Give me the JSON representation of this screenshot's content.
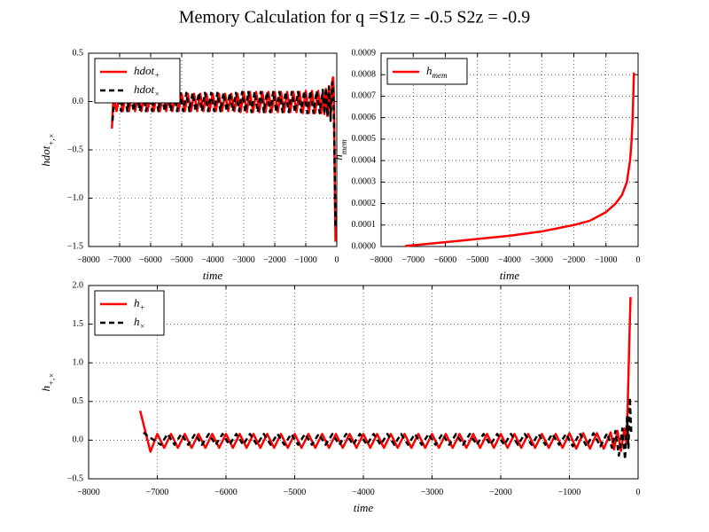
{
  "title": "Memory Calculation for q =S1z = -0.5 S2z = -0.9",
  "chart_data": [
    {
      "type": "line",
      "xlabel": "time",
      "ylabel": "hdot",
      "ylabel_sub": "+,×",
      "xlim": [
        -8000,
        0
      ],
      "ylim": [
        -1.5,
        0.5
      ],
      "xticks": [
        {
          "value": -8000,
          "label": "−8000"
        },
        {
          "value": -7000,
          "label": "−7000"
        },
        {
          "value": -6000,
          "label": "−6000"
        },
        {
          "value": -5000,
          "label": "−5000"
        },
        {
          "value": -4000,
          "label": "−4000"
        },
        {
          "value": -3000,
          "label": "−3000"
        },
        {
          "value": -2000,
          "label": "−2000"
        },
        {
          "value": -1000,
          "label": "−1000"
        },
        0
      ],
      "yticks": [
        {
          "value": -1.5,
          "label": "−1.5"
        },
        {
          "value": -1.0,
          "label": "−1.0"
        },
        {
          "value": -0.5,
          "label": "−0.5"
        },
        {
          "value": 0,
          "label": "0.0"
        },
        0.5
      ],
      "grid": true,
      "legend": "upper left",
      "series": [
        {
          "name": "hdot",
          "name_sub": "+",
          "color": "#ff0000",
          "linestyle": "solid",
          "x": [
            -7250,
            -7200,
            -7100,
            -7000,
            -6900,
            -6800,
            -6700,
            -6600,
            -6500,
            -6400,
            -6300,
            -6200,
            -6100,
            -6000,
            -5900,
            -5800,
            -5700,
            -5600,
            -5500,
            -5400,
            -5300,
            -5200,
            -5100,
            -5000,
            -4900,
            -4800,
            -4700,
            -4600,
            -4500,
            -4400,
            -4300,
            -4200,
            -4100,
            -4000,
            -3900,
            -3800,
            -3700,
            -3600,
            -3500,
            -3400,
            -3300,
            -3200,
            -3100,
            -3000,
            -2900,
            -2800,
            -2700,
            -2600,
            -2500,
            -2400,
            -2300,
            -2200,
            -2100,
            -2000,
            -1900,
            -1800,
            -1700,
            -1600,
            -1500,
            -1400,
            -1300,
            -1200,
            -1100,
            -1000,
            -900,
            -800,
            -700,
            -600,
            -500,
            -450,
            -400,
            -350,
            -300,
            -250,
            -200,
            -150,
            -120,
            -100,
            -80,
            -60,
            -40
          ],
          "values": [
            -0.28,
            0.05,
            -0.1,
            0.08,
            -0.1,
            0.08,
            -0.1,
            0.08,
            -0.1,
            0.08,
            -0.1,
            0.08,
            -0.1,
            0.08,
            -0.1,
            0.08,
            -0.1,
            0.08,
            -0.1,
            0.08,
            -0.1,
            0.08,
            -0.1,
            0.08,
            -0.1,
            0.08,
            -0.1,
            0.08,
            -0.1,
            0.08,
            -0.1,
            0.08,
            -0.1,
            0.08,
            -0.1,
            0.08,
            -0.1,
            0.08,
            -0.1,
            0.08,
            -0.1,
            0.08,
            -0.11,
            0.1,
            -0.11,
            0.1,
            -0.11,
            0.1,
            -0.11,
            0.1,
            -0.11,
            0.1,
            -0.11,
            0.1,
            -0.11,
            0.1,
            -0.11,
            0.1,
            -0.11,
            0.1,
            -0.11,
            0.1,
            -0.12,
            0.11,
            -0.12,
            0.11,
            -0.12,
            0.11,
            -0.12,
            0.12,
            -0.13,
            0.13,
            -0.15,
            0.16,
            -0.18,
            0.2,
            0.25,
            0.15,
            -0.3,
            -1.0,
            -1.45
          ]
        },
        {
          "name": "hdot",
          "name_sub": "×",
          "color": "#000000",
          "linestyle": "dashed",
          "x": [
            -7230,
            -7180,
            -7050,
            -6950,
            -6850,
            -6750,
            -6650,
            -6550,
            -6450,
            -6350,
            -6250,
            -6150,
            -6050,
            -5950,
            -5850,
            -5750,
            -5650,
            -5550,
            -5450,
            -5350,
            -5250,
            -5150,
            -5050,
            -4950,
            -4850,
            -4750,
            -4650,
            -4550,
            -4450,
            -4350,
            -4250,
            -4150,
            -4050,
            -3950,
            -3850,
            -3750,
            -3650,
            -3550,
            -3450,
            -3350,
            -3250,
            -3150,
            -3050,
            -2950,
            -2850,
            -2750,
            -2650,
            -2550,
            -2450,
            -2350,
            -2250,
            -2150,
            -2050,
            -1950,
            -1850,
            -1750,
            -1650,
            -1550,
            -1450,
            -1350,
            -1250,
            -1150,
            -1050,
            -950,
            -850,
            -750,
            -650,
            -550,
            -450,
            -400,
            -350,
            -300,
            -250,
            -200,
            -150,
            -110,
            -80,
            -60,
            -45
          ],
          "values": [
            -0.2,
            0.0,
            0.09,
            -0.1,
            0.09,
            -0.1,
            0.09,
            -0.1,
            0.09,
            -0.1,
            0.09,
            -0.1,
            0.09,
            -0.1,
            0.09,
            -0.1,
            0.09,
            -0.1,
            0.09,
            -0.1,
            0.09,
            -0.1,
            0.09,
            -0.1,
            0.09,
            -0.1,
            0.09,
            -0.1,
            0.09,
            -0.1,
            0.09,
            -0.1,
            0.09,
            -0.1,
            0.09,
            -0.1,
            0.09,
            -0.1,
            0.09,
            -0.1,
            0.09,
            -0.1,
            0.1,
            -0.11,
            0.1,
            -0.11,
            0.1,
            -0.11,
            0.1,
            -0.11,
            0.1,
            -0.11,
            0.1,
            -0.11,
            0.1,
            -0.11,
            0.1,
            -0.11,
            0.1,
            -0.11,
            0.1,
            -0.11,
            0.11,
            -0.12,
            0.11,
            -0.12,
            0.11,
            -0.12,
            0.12,
            -0.13,
            0.14,
            -0.15,
            0.15,
            -0.2,
            0.2,
            0.1,
            -0.4,
            -0.9,
            -1.3
          ]
        }
      ]
    },
    {
      "type": "line",
      "xlabel": "time",
      "ylabel": "h",
      "ylabel_sub": "mem",
      "xlim": [
        -8000,
        0
      ],
      "ylim": [
        0,
        0.0009
      ],
      "xticks": [
        {
          "value": -8000,
          "label": "−8000"
        },
        {
          "value": -7000,
          "label": "−7000"
        },
        {
          "value": -6000,
          "label": "−6000"
        },
        {
          "value": -5000,
          "label": "−5000"
        },
        {
          "value": -4000,
          "label": "−4000"
        },
        {
          "value": -3000,
          "label": "−3000"
        },
        {
          "value": -2000,
          "label": "−2000"
        },
        {
          "value": -1000,
          "label": "−1000"
        },
        0
      ],
      "yticks": [
        {
          "value": 0,
          "label": "0.0000"
        },
        0.0001,
        0.0002,
        0.0003,
        0.0004,
        0.0005,
        0.0006,
        0.0007,
        0.0008,
        0.0009
      ],
      "grid": true,
      "legend": "upper left",
      "series": [
        {
          "name": "h",
          "name_sub": "mem",
          "color": "#ff0000",
          "linestyle": "solid",
          "x": [
            -7250,
            -6000,
            -5000,
            -4000,
            -3000,
            -2000,
            -1500,
            -1000,
            -700,
            -500,
            -350,
            -250,
            -200,
            -170,
            -150,
            -130
          ],
          "values": [
            2e-06,
            2e-05,
            3.5e-05,
            5e-05,
            7e-05,
            0.0001,
            0.00012,
            0.00016,
            0.0002,
            0.00024,
            0.0003,
            0.0004,
            0.0005,
            0.0006,
            0.0007,
            0.00081
          ]
        }
      ]
    },
    {
      "type": "line",
      "xlabel": "time",
      "ylabel": "h",
      "ylabel_sub": "+,×",
      "xlim": [
        -8000,
        0
      ],
      "ylim": [
        -0.5,
        2.0
      ],
      "xticks": [
        {
          "value": -8000,
          "label": "−8000"
        },
        {
          "value": -7000,
          "label": "−7000"
        },
        {
          "value": -6000,
          "label": "−6000"
        },
        {
          "value": -5000,
          "label": "−5000"
        },
        {
          "value": -4000,
          "label": "−4000"
        },
        {
          "value": -3000,
          "label": "−3000"
        },
        {
          "value": -2000,
          "label": "−2000"
        },
        {
          "value": -1000,
          "label": "−1000"
        },
        0
      ],
      "yticks": [
        {
          "value": -0.5,
          "label": "−0.5"
        },
        {
          "value": 0,
          "label": "0.0"
        },
        0.5,
        {
          "value": 1.0,
          "label": "1.0"
        },
        1.5,
        {
          "value": 2.0,
          "label": "2.0"
        }
      ],
      "grid": true,
      "legend": "upper left",
      "series": [
        {
          "name": "h",
          "name_sub": "+",
          "color": "#ff0000",
          "linestyle": "solid",
          "x": [
            -7250,
            -7100,
            -7000,
            -6900,
            -6800,
            -6700,
            -6600,
            -6500,
            -6400,
            -6300,
            -6200,
            -6100,
            -6000,
            -5900,
            -5800,
            -5700,
            -5600,
            -5500,
            -5400,
            -5300,
            -5200,
            -5100,
            -5000,
            -4900,
            -4800,
            -4700,
            -4600,
            -4500,
            -4400,
            -4300,
            -4200,
            -4100,
            -4000,
            -3900,
            -3800,
            -3700,
            -3600,
            -3500,
            -3400,
            -3300,
            -3200,
            -3100,
            -3000,
            -2900,
            -2800,
            -2700,
            -2600,
            -2500,
            -2400,
            -2300,
            -2200,
            -2100,
            -2000,
            -1900,
            -1800,
            -1700,
            -1600,
            -1500,
            -1400,
            -1300,
            -1200,
            -1100,
            -1000,
            -900,
            -800,
            -700,
            -600,
            -500,
            -400,
            -350,
            -300,
            -250,
            -200,
            -170,
            -150,
            -130,
            -110
          ],
          "values": [
            0.38,
            -0.15,
            0.08,
            -0.1,
            0.08,
            -0.1,
            0.08,
            -0.1,
            0.08,
            -0.1,
            0.08,
            -0.1,
            0.08,
            -0.1,
            0.08,
            -0.1,
            0.08,
            -0.1,
            0.08,
            -0.1,
            0.08,
            -0.1,
            0.08,
            -0.1,
            0.08,
            -0.1,
            0.08,
            -0.1,
            0.08,
            -0.1,
            0.08,
            -0.1,
            0.08,
            -0.1,
            0.08,
            -0.1,
            0.08,
            -0.1,
            0.08,
            -0.1,
            0.08,
            -0.1,
            0.08,
            -0.1,
            0.08,
            -0.1,
            0.08,
            -0.1,
            0.08,
            -0.1,
            0.08,
            -0.1,
            0.08,
            -0.1,
            0.08,
            -0.1,
            0.08,
            -0.1,
            0.08,
            -0.1,
            0.08,
            -0.1,
            0.09,
            -0.11,
            0.09,
            -0.11,
            0.09,
            -0.11,
            0.1,
            -0.12,
            0.12,
            -0.14,
            0.15,
            -0.05,
            0.5,
            1.2,
            1.85
          ]
        },
        {
          "name": "h",
          "name_sub": "×",
          "color": "#000000",
          "linestyle": "dashed",
          "x": [
            -7200,
            -7150,
            -6950,
            -6850,
            -6750,
            -6650,
            -6550,
            -6450,
            -6350,
            -6250,
            -6150,
            -6050,
            -5950,
            -5850,
            -5750,
            -5650,
            -5550,
            -5450,
            -5350,
            -5250,
            -5150,
            -5050,
            -4950,
            -4850,
            -4750,
            -4650,
            -4550,
            -4450,
            -4350,
            -4250,
            -4150,
            -4050,
            -3950,
            -3850,
            -3750,
            -3650,
            -3550,
            -3450,
            -3350,
            -3250,
            -3150,
            -3050,
            -2950,
            -2850,
            -2750,
            -2650,
            -2550,
            -2450,
            -2350,
            -2250,
            -2150,
            -2050,
            -1950,
            -1850,
            -1750,
            -1650,
            -1550,
            -1450,
            -1350,
            -1250,
            -1150,
            -1050,
            -950,
            -850,
            -750,
            -650,
            -550,
            -450,
            -380,
            -330,
            -280,
            -230,
            -190,
            -160,
            -140,
            -120,
            -100
          ],
          "values": [
            0.1,
            0.06,
            -0.06,
            0.08,
            -0.06,
            0.08,
            -0.06,
            0.08,
            -0.06,
            0.08,
            -0.06,
            0.08,
            -0.06,
            0.08,
            -0.06,
            0.08,
            -0.06,
            0.08,
            -0.06,
            0.08,
            -0.06,
            0.08,
            -0.06,
            0.08,
            -0.06,
            0.08,
            -0.06,
            0.08,
            -0.06,
            0.08,
            -0.06,
            0.08,
            -0.06,
            0.08,
            -0.06,
            0.08,
            -0.06,
            0.08,
            -0.06,
            0.08,
            -0.06,
            0.08,
            -0.06,
            0.08,
            -0.06,
            0.08,
            -0.06,
            0.08,
            -0.06,
            0.08,
            -0.06,
            0.08,
            -0.06,
            0.08,
            -0.06,
            0.08,
            -0.06,
            0.08,
            -0.06,
            0.08,
            -0.06,
            0.08,
            -0.08,
            0.09,
            -0.08,
            0.09,
            -0.08,
            0.09,
            -0.1,
            0.12,
            -0.2,
            0.15,
            -0.25,
            0.3,
            -0.1,
            0.55,
            0.1
          ]
        }
      ]
    }
  ]
}
